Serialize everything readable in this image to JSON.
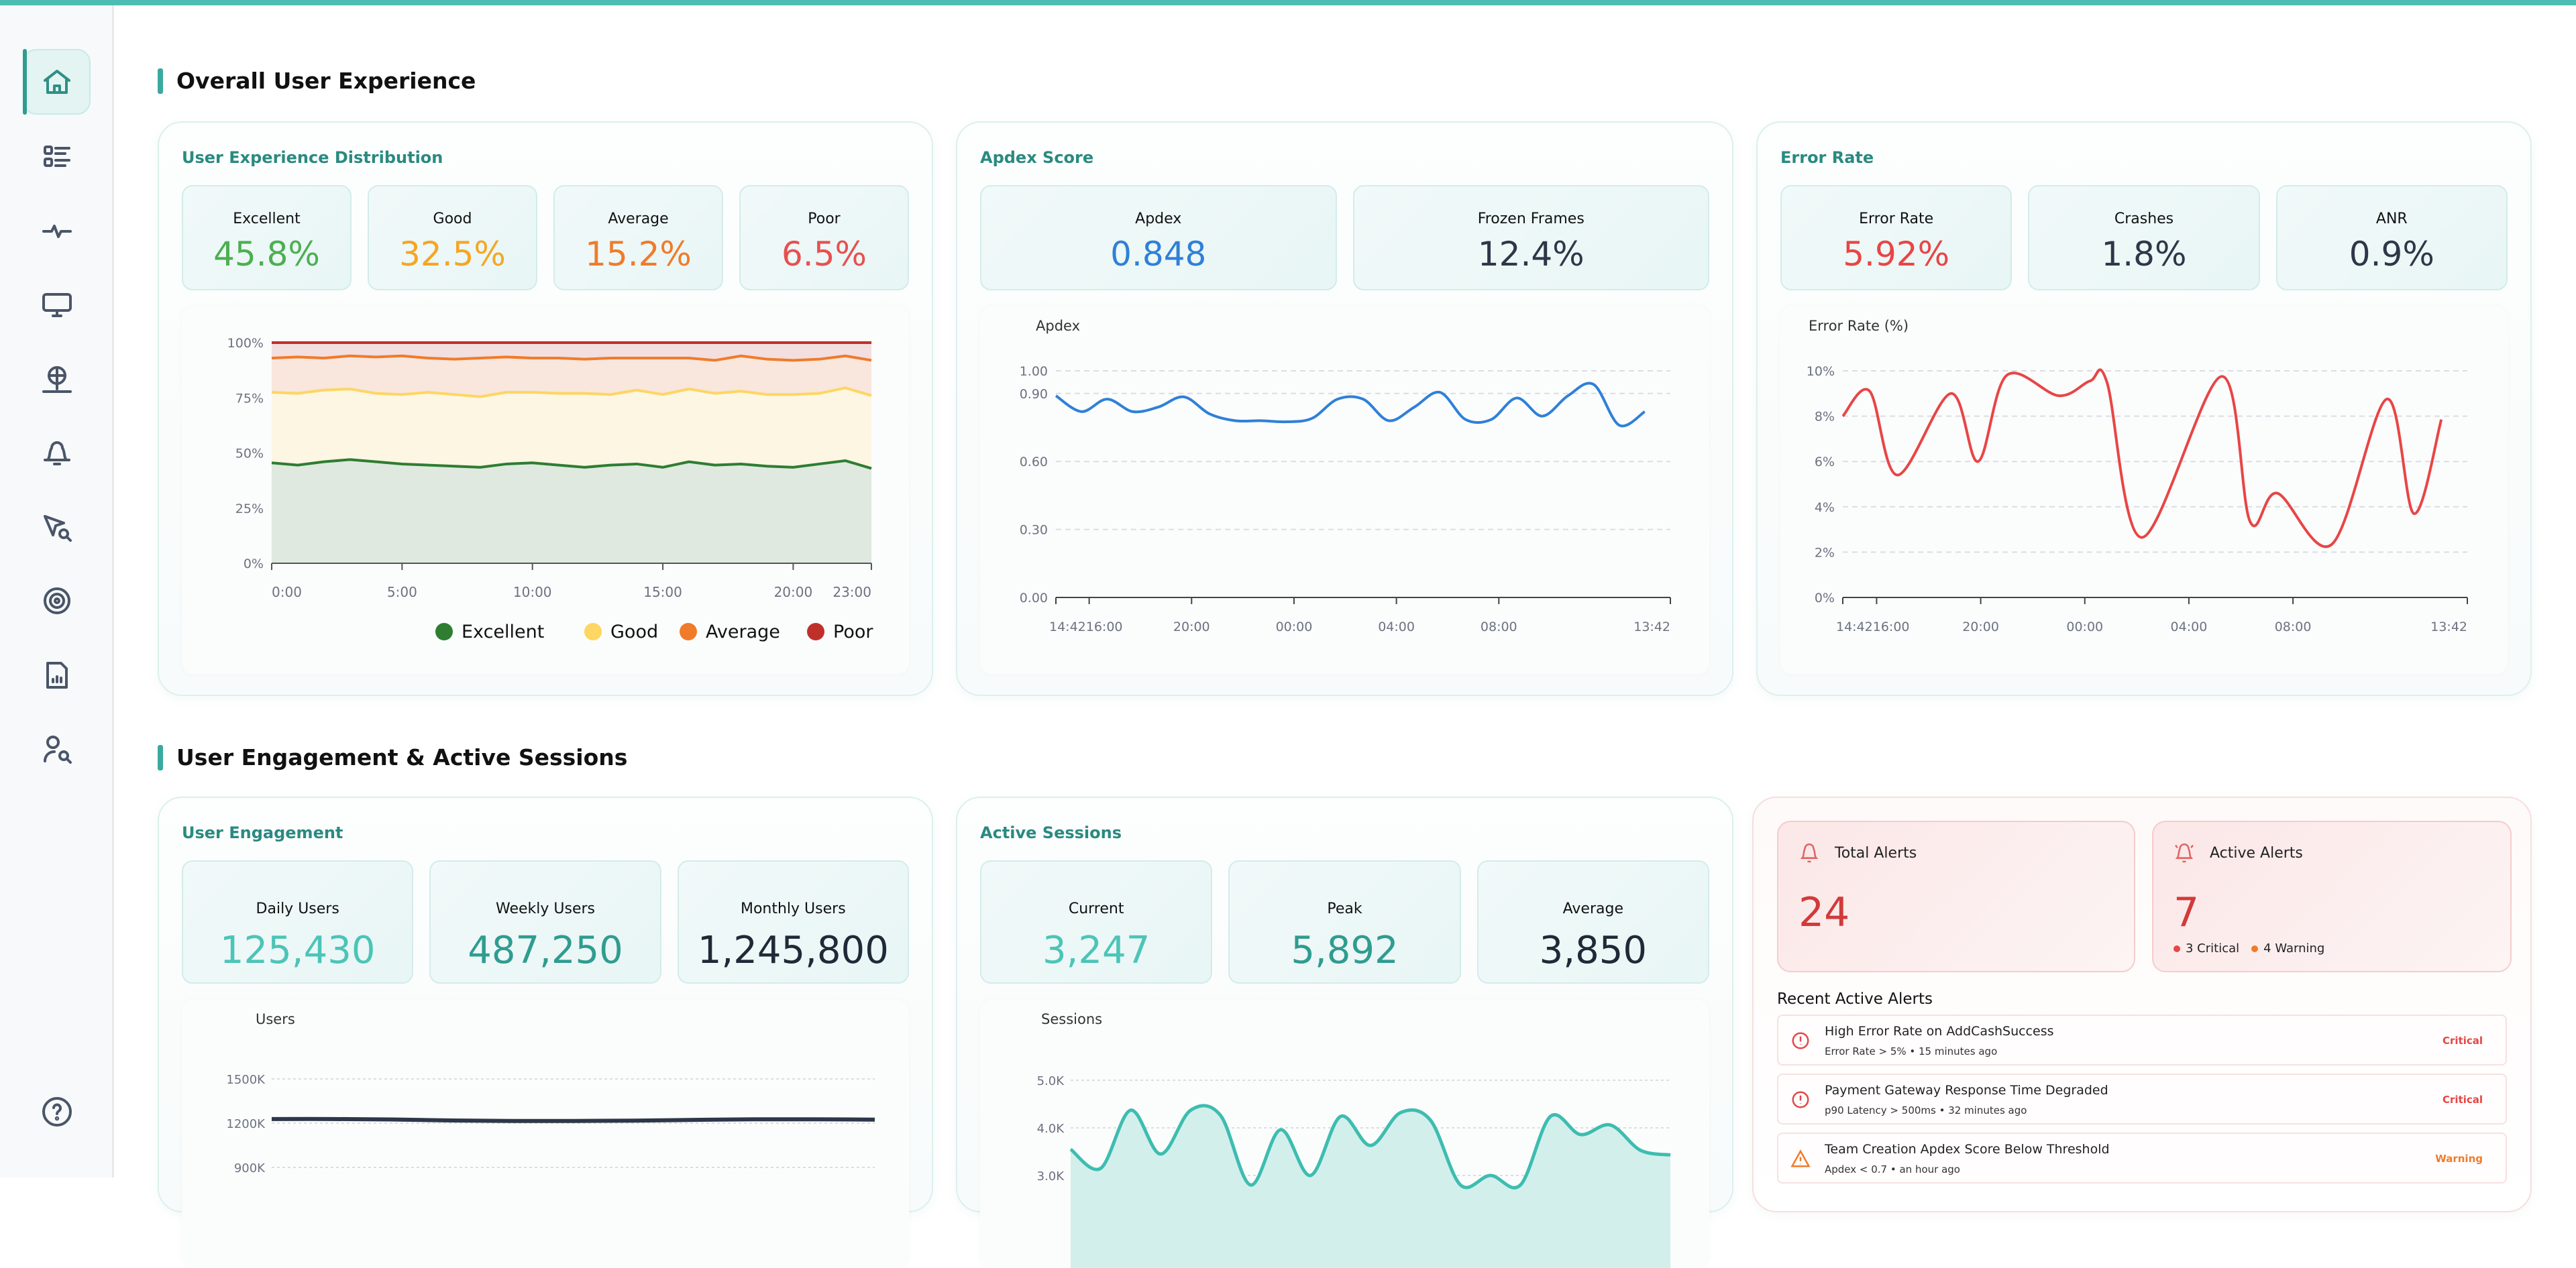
{
  "colors": {
    "accent": "#3bb5aa",
    "excellent": "#2e7d32",
    "good": "#fdd663",
    "average": "#f07b2a",
    "poor": "#c0302b",
    "apdex": "#2f80d8",
    "error": "#e84545",
    "sessions": "#3dbdb0",
    "users": "#2d3748",
    "critical": "#e84545",
    "warning": "#f07b2a"
  },
  "sidebar": {
    "items": [
      {
        "icon": "home-icon",
        "active": true
      },
      {
        "icon": "list-icon"
      },
      {
        "icon": "activity-icon"
      },
      {
        "icon": "monitor-icon"
      },
      {
        "icon": "network-icon"
      },
      {
        "icon": "bell-icon"
      },
      {
        "icon": "cursor-search-icon"
      },
      {
        "icon": "target-icon"
      },
      {
        "icon": "report-icon"
      },
      {
        "icon": "user-search-icon"
      }
    ],
    "help_icon": "help-icon"
  },
  "section1": {
    "title": "Overall User Experience"
  },
  "ux": {
    "title": "User Experience Distribution",
    "stats": [
      {
        "label": "Excellent",
        "value": "45.8%",
        "color": "#4caf50"
      },
      {
        "label": "Good",
        "value": "32.5%",
        "color": "#f5a623"
      },
      {
        "label": "Average",
        "value": "15.2%",
        "color": "#f07b2a"
      },
      {
        "label": "Poor",
        "value": "6.5%",
        "color": "#e85050"
      }
    ]
  },
  "apdex": {
    "title": "Apdex Score",
    "stats": [
      {
        "label": "Apdex",
        "value": "0.848",
        "color": "#2f80d8"
      },
      {
        "label": "Frozen Frames",
        "value": "12.4%",
        "color": "#2d3748"
      }
    ]
  },
  "errors": {
    "title": "Error Rate",
    "stats": [
      {
        "label": "Error Rate",
        "value": "5.92%",
        "color": "#e84545"
      },
      {
        "label": "Crashes",
        "value": "1.8%",
        "color": "#2d3748"
      },
      {
        "label": "ANR",
        "value": "0.9%",
        "color": "#2d3748"
      }
    ]
  },
  "section2": {
    "title": "User Engagement & Active Sessions"
  },
  "engagement": {
    "title": "User Engagement",
    "stats": [
      {
        "label": "Daily Users",
        "value": "125,430",
        "color": "#4cc4b8"
      },
      {
        "label": "Weekly Users",
        "value": "487,250",
        "color": "#2f9c90"
      },
      {
        "label": "Monthly Users",
        "value": "1,245,800",
        "color": "#1f2937"
      }
    ]
  },
  "sessions": {
    "title": "Active Sessions",
    "stats": [
      {
        "label": "Current",
        "value": "3,247",
        "color": "#4cc4b8"
      },
      {
        "label": "Peak",
        "value": "5,892",
        "color": "#2f9c90"
      },
      {
        "label": "Average",
        "value": "3,850",
        "color": "#1f2937"
      }
    ]
  },
  "alerts": {
    "total_label": "Total Alerts",
    "total": "24",
    "active_label": "Active Alerts",
    "active": "7",
    "critical_count": "3 Critical",
    "warning_count": "4 Warning",
    "recent_title": "Recent Active Alerts",
    "items": [
      {
        "title": "High Error Rate on AddCashSuccess",
        "sub": "Error Rate > 5% • 15 minutes ago",
        "severity": "Critical"
      },
      {
        "title": "Payment Gateway Response Time Degraded",
        "sub": "p90 Latency > 500ms • 32 minutes ago",
        "severity": "Critical"
      },
      {
        "title": "Team Creation Apdex Score Below Threshold",
        "sub": "Apdex < 0.7 • an hour ago",
        "severity": "Warning"
      }
    ]
  },
  "chart_data": [
    {
      "type": "area",
      "stacked": true,
      "x": [
        "0:00",
        "1:00",
        "2:00",
        "3:00",
        "4:00",
        "5:00",
        "6:00",
        "7:00",
        "8:00",
        "9:00",
        "10:00",
        "11:00",
        "12:00",
        "13:00",
        "14:00",
        "15:00",
        "16:00",
        "17:00",
        "18:00",
        "19:00",
        "20:00",
        "21:00",
        "22:00",
        "23:00"
      ],
      "xticks": [
        "0:00",
        "5:00",
        "10:00",
        "15:00",
        "20:00",
        "23:00"
      ],
      "yticks": [
        "0%",
        "25%",
        "50%",
        "75%",
        "100%"
      ],
      "ylim": [
        0,
        100
      ],
      "grid": true,
      "legend": "bottom",
      "series": [
        {
          "name": "Excellent",
          "values": [
            45.5,
            44.5,
            46,
            47,
            46,
            45,
            44.5,
            44,
            43.5,
            45,
            45.5,
            44.5,
            43.5,
            44.5,
            45,
            43.5,
            46,
            44.5,
            45,
            44,
            43.5,
            45,
            46.5,
            43
          ]
        },
        {
          "name": "Good",
          "values": [
            32,
            32.5,
            32.5,
            32,
            31,
            31.5,
            33,
            32.5,
            32,
            32.5,
            32,
            32.5,
            33.5,
            32,
            33.5,
            33,
            33,
            32.5,
            33,
            32.5,
            33,
            32,
            33,
            33
          ]
        },
        {
          "name": "Average",
          "values": [
            15.5,
            16.5,
            14.5,
            15,
            16.5,
            17.5,
            15.5,
            16,
            17.5,
            16,
            15.5,
            16,
            15.5,
            16.5,
            14.5,
            16.5,
            14,
            15,
            16,
            16,
            15.5,
            15.5,
            14.5,
            16
          ]
        },
        {
          "name": "Poor",
          "values": [
            7,
            6.5,
            7,
            6,
            6.5,
            6,
            7,
            7.5,
            7,
            6.5,
            7,
            7,
            7.5,
            7,
            7,
            7,
            7,
            8,
            6,
            7.5,
            8,
            7.5,
            6,
            8
          ]
        }
      ]
    },
    {
      "type": "line",
      "ylabel": "Apdex",
      "ylim": [
        0,
        1
      ],
      "yticks": [
        "0.00",
        "0.30",
        "0.60",
        "0.90",
        "1.00"
      ],
      "xticks": [
        "14:42",
        "16:00",
        "20:00",
        "00:00",
        "04:00",
        "08:00",
        "13:42"
      ],
      "grid": true,
      "x": [
        "14:42",
        "15:42",
        "16:42",
        "17:42",
        "18:42",
        "19:42",
        "20:42",
        "21:42",
        "22:42",
        "23:42",
        "00:42",
        "01:42",
        "02:42",
        "03:42",
        "04:42",
        "05:42",
        "06:42",
        "07:42",
        "08:42",
        "09:42",
        "10:42",
        "11:42",
        "12:42",
        "13:42"
      ],
      "values": [
        0.89,
        0.82,
        0.875,
        0.82,
        0.84,
        0.885,
        0.81,
        0.78,
        0.78,
        0.775,
        0.79,
        0.875,
        0.875,
        0.78,
        0.84,
        0.905,
        0.785,
        0.785,
        0.88,
        0.8,
        0.89,
        0.94,
        0.76,
        0.82
      ]
    },
    {
      "type": "line",
      "ylabel": "Error Rate (%)",
      "ylim": [
        0,
        10
      ],
      "yticks": [
        "0%",
        "2%",
        "4%",
        "6%",
        "8%",
        "10%"
      ],
      "xticks": [
        "14:42",
        "16:00",
        "20:00",
        "00:00",
        "04:00",
        "08:00",
        "13:42"
      ],
      "grid": true,
      "x": [
        "14:42",
        "15:44",
        "16:48",
        "18:51",
        "19:54",
        "21:00",
        "23:00",
        "00:12",
        "00:51",
        "02:12",
        "05:15",
        "06:21",
        "07:24",
        "09:30",
        "11:36",
        "12:39",
        "13:42"
      ],
      "values": [
        8.0,
        9.1,
        5.4,
        9.0,
        6.0,
        9.8,
        8.9,
        9.55,
        9.5,
        2.65,
        9.75,
        3.35,
        4.6,
        2.35,
        8.75,
        3.7,
        7.85
      ]
    },
    {
      "type": "line",
      "ylabel": "Users",
      "yticks": [
        "900K",
        "1200K",
        "1500K"
      ],
      "grid": true,
      "values": [
        1228,
        1228,
        1225,
        1218,
        1215,
        1215,
        1217,
        1222,
        1226,
        1226,
        1224
      ]
    },
    {
      "type": "area",
      "ylabel": "Sessions",
      "yticks": [
        "3.0K",
        "4.0K",
        "5.0K"
      ],
      "grid": true,
      "values": [
        3.55,
        3.15,
        4.37,
        3.45,
        4.37,
        4.26,
        2.8,
        3.96,
        3.0,
        4.24,
        3.63,
        4.32,
        4.16,
        2.8,
        3.0,
        2.8,
        4.24,
        3.86,
        4.06,
        3.53,
        3.43
      ]
    }
  ]
}
